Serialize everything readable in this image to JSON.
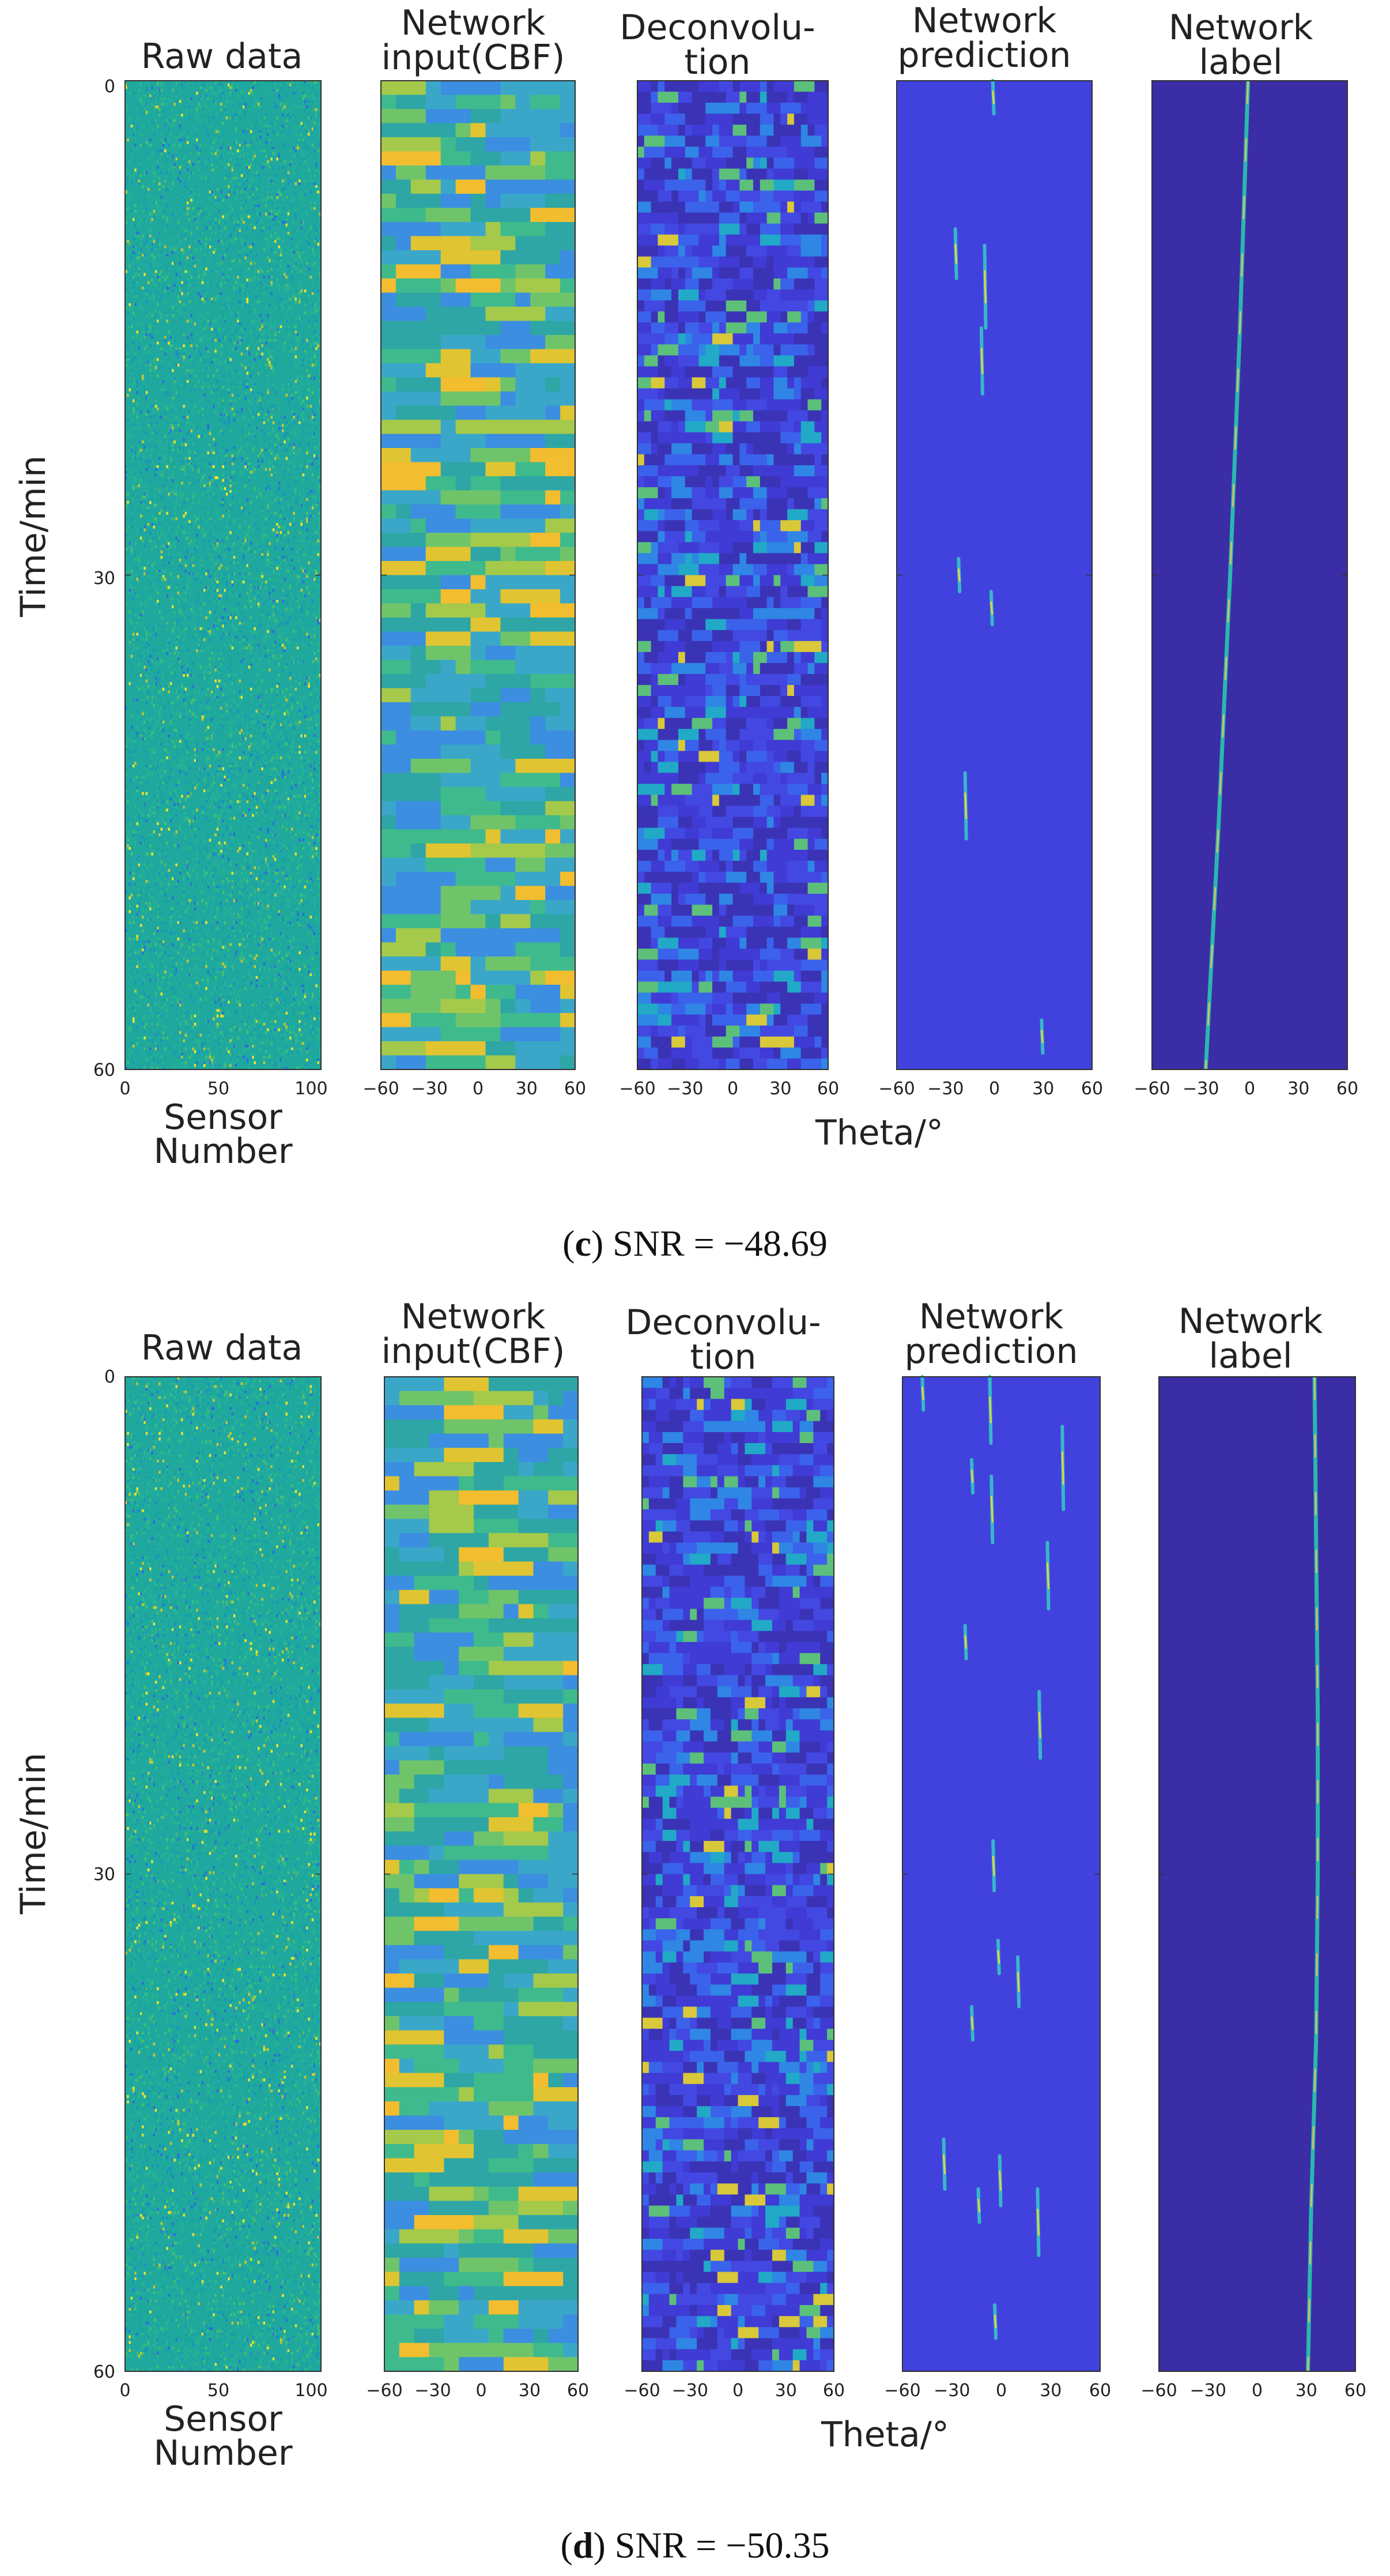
{
  "chart_data": [
    {
      "caption_letter": "c",
      "caption_text": " SNR = −48.69",
      "ylabel": "Time/min",
      "yticks": [
        "0",
        "30",
        "60"
      ],
      "ylim": [
        0,
        60
      ],
      "theta_label": "Theta/°",
      "seed": 17,
      "panels": [
        {
          "type": "heatmap",
          "title_lines": [
            "Raw data"
          ],
          "xlabel_lines": [
            "Sensor",
            "Number"
          ],
          "xlim": [
            0,
            105
          ],
          "xticks": [
            "0",
            "50",
            "100"
          ],
          "palette": "raw",
          "cols": 105,
          "rows": 360
        },
        {
          "type": "heatmap",
          "title_lines": [
            "Network",
            "input(CBF)"
          ],
          "xlim": [
            -60,
            60
          ],
          "xticks": [
            "−60",
            "−30",
            "0",
            "30",
            "60"
          ],
          "palette": "cbf",
          "cols": 13,
          "rows": 70
        },
        {
          "type": "heatmap",
          "title_lines": [
            "Deconvolu-",
            "tion"
          ],
          "xlim": [
            -60,
            60
          ],
          "xticks": [
            "−60",
            "−30",
            "0",
            "30",
            "60"
          ],
          "palette": "deconv",
          "cols": 28,
          "rows": 90
        },
        {
          "type": "heatmap",
          "title_lines": [
            "Network",
            "prediction"
          ],
          "xlim": [
            -60,
            60
          ],
          "xticks": [
            "−60",
            "−30",
            "0",
            "30",
            "60"
          ],
          "palette": "pred",
          "streaks": [
            [
              -1,
              0,
              2
            ],
            [
              -24,
              9,
              12
            ],
            [
              -6,
              10,
              15
            ],
            [
              -8,
              15,
              19
            ],
            [
              -22,
              29,
              31
            ],
            [
              -2,
              31,
              33
            ],
            [
              -18,
              42,
              46
            ],
            [
              29,
              57,
              59
            ]
          ]
        },
        {
          "type": "line",
          "title_lines": [
            "Network",
            "label"
          ],
          "xlim": [
            -60,
            60
          ],
          "xticks": [
            "−60",
            "−30",
            "0",
            "30",
            "60"
          ],
          "palette": "label",
          "line_x": [
            -1,
            -6,
            -12,
            -19,
            -27
          ],
          "line_y": [
            0,
            15,
            30,
            45,
            60
          ]
        }
      ]
    },
    {
      "caption_letter": "d",
      "caption_text": " SNR = −50.35",
      "ylabel": "Time/min",
      "yticks": [
        "0",
        "30",
        "60"
      ],
      "ylim": [
        0,
        60
      ],
      "theta_label": "Theta/°",
      "seed": 41,
      "panels": [
        {
          "type": "heatmap",
          "title_lines": [
            "Raw data"
          ],
          "xlabel_lines": [
            "Sensor",
            "Number"
          ],
          "xlim": [
            0,
            105
          ],
          "xticks": [
            "0",
            "50",
            "100"
          ],
          "palette": "raw",
          "cols": 105,
          "rows": 360
        },
        {
          "type": "heatmap",
          "title_lines": [
            "Network",
            "input(CBF)"
          ],
          "xlim": [
            -60,
            60
          ],
          "xticks": [
            "−60",
            "−30",
            "0",
            "30",
            "60"
          ],
          "palette": "cbf",
          "cols": 13,
          "rows": 70
        },
        {
          "type": "heatmap",
          "title_lines": [
            "Deconvolu-",
            "tion"
          ],
          "xlim": [
            -60,
            60
          ],
          "xticks": [
            "−60",
            "−30",
            "0",
            "30",
            "60"
          ],
          "palette": "deconv",
          "cols": 28,
          "rows": 90
        },
        {
          "type": "heatmap",
          "title_lines": [
            "Network",
            "prediction"
          ],
          "xlim": [
            -60,
            60
          ],
          "xticks": [
            "−60",
            "−30",
            "0",
            "30",
            "60"
          ],
          "palette": "pred",
          "streaks": [
            [
              -48,
              0,
              2
            ],
            [
              -7,
              0,
              4
            ],
            [
              37,
              3,
              8
            ],
            [
              -18,
              5,
              7
            ],
            [
              -6,
              6,
              10
            ],
            [
              28,
              10,
              14
            ],
            [
              -22,
              15,
              17
            ],
            [
              23,
              19,
              23
            ],
            [
              -5,
              28,
              31
            ],
            [
              -2,
              34,
              36
            ],
            [
              10,
              35,
              38
            ],
            [
              -18,
              38,
              40
            ],
            [
              -35,
              46,
              49
            ],
            [
              -14,
              49,
              51
            ],
            [
              -1,
              47,
              50
            ],
            [
              22,
              49,
              53
            ],
            [
              -4,
              56,
              58
            ]
          ]
        },
        {
          "type": "line",
          "title_lines": [
            "Network",
            "label"
          ],
          "xlim": [
            -60,
            60
          ],
          "xticks": [
            "−60",
            "−30",
            "0",
            "30",
            "60"
          ],
          "palette": "label",
          "line_x": [
            35,
            36,
            37,
            37,
            36,
            33,
            31
          ],
          "line_y": [
            0,
            10,
            20,
            30,
            40,
            50,
            60
          ]
        }
      ]
    }
  ]
}
